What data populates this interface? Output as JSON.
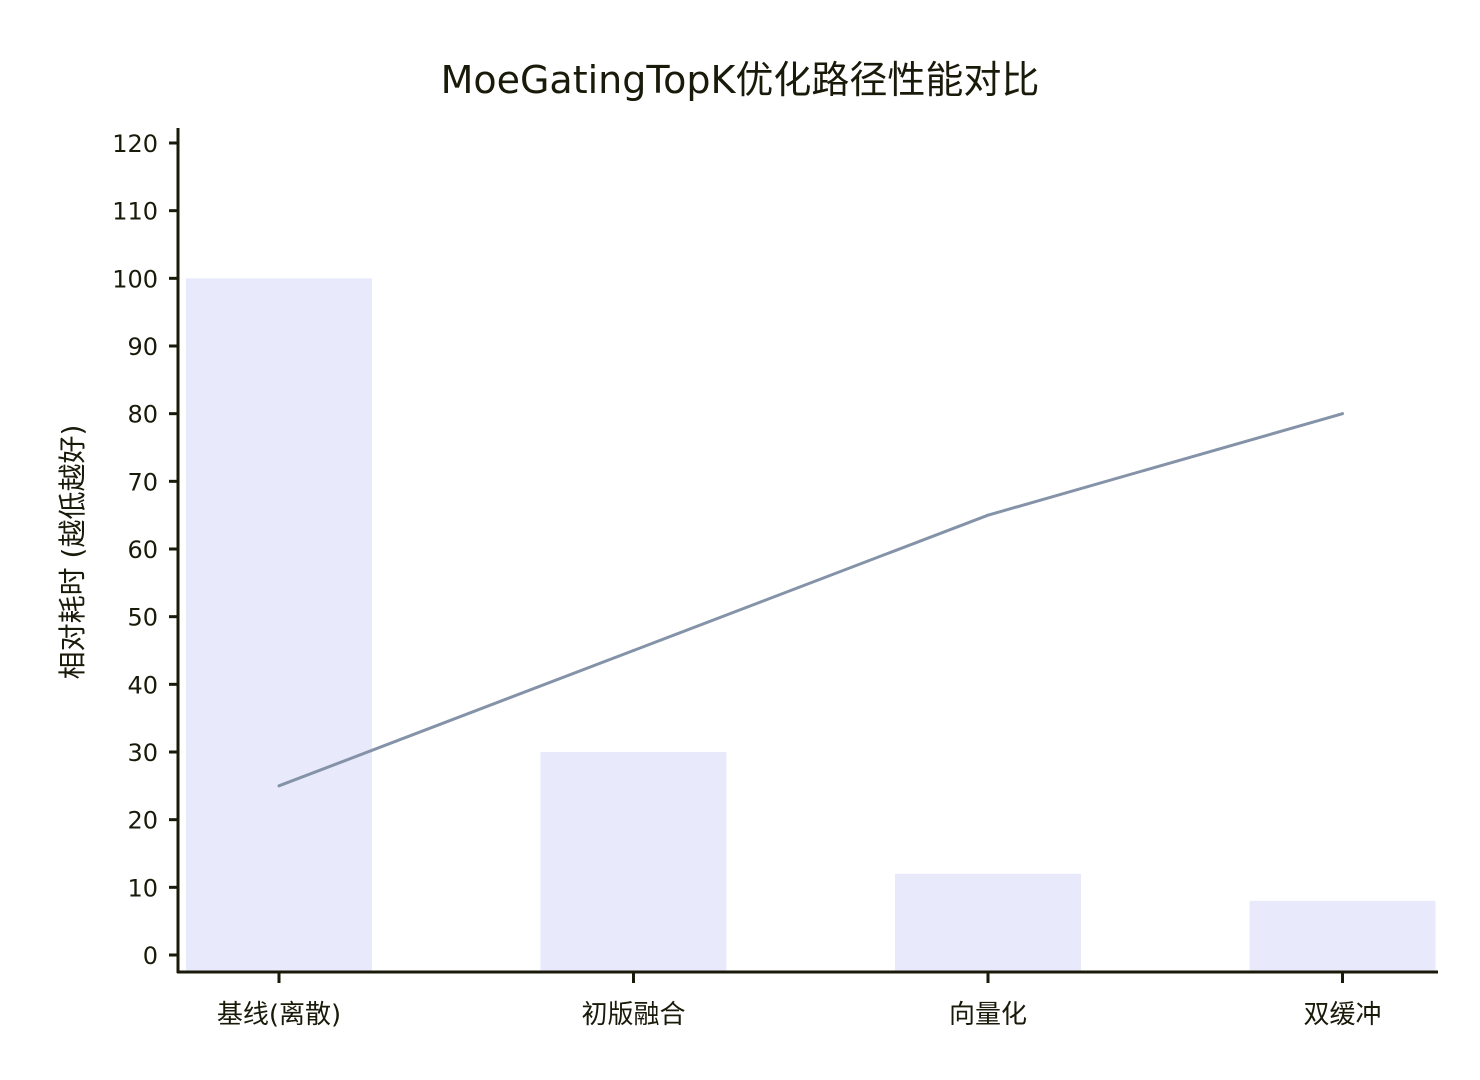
{
  "chart_data": {
    "type": "bar",
    "title": "MoeGatingTopK优化路径性能对比",
    "xlabel": "",
    "ylabel": "相对耗时 (越低越好)",
    "categories": [
      "基线(离散)",
      "初版融合",
      "向量化",
      "双缓冲"
    ],
    "series": [
      {
        "type": "bar",
        "values": [
          100,
          30,
          12,
          8
        ]
      },
      {
        "type": "line",
        "values": [
          25,
          45,
          65,
          80
        ]
      }
    ],
    "ylim": [
      0,
      120
    ],
    "yticks": [
      0,
      10,
      20,
      30,
      40,
      50,
      60,
      70,
      80,
      90,
      100,
      110,
      120
    ],
    "grid": false,
    "legend": "none",
    "colors": {
      "bar": "#e8eafc",
      "line": "#8493a8",
      "axis": "#1a1a0a"
    }
  }
}
